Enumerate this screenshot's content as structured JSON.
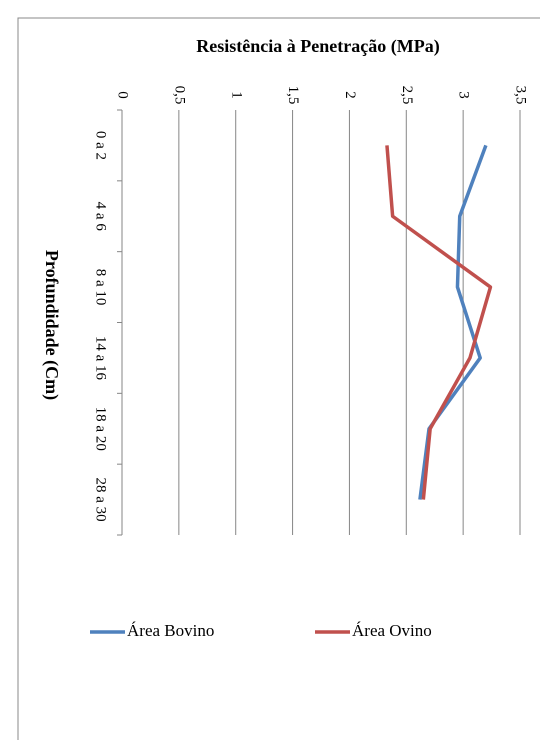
{
  "chart_data": {
    "type": "line",
    "orientation": "horizontal",
    "title": "Resistência à Penetração (MPa)",
    "y_label": "Profundidade (Cm)",
    "categories": [
      "0 a 2",
      "4 a 6",
      "8 a 10",
      "14 a 16",
      "18 a 20",
      "28 a 30"
    ],
    "series": [
      {
        "name": "Área Bovino",
        "color": "#4f81bd",
        "values": [
          3.2,
          2.97,
          2.95,
          3.15,
          2.7,
          2.62
        ]
      },
      {
        "name": "Área Ovino",
        "color": "#c0504d",
        "values": [
          2.33,
          2.38,
          3.24,
          3.06,
          2.71,
          2.65
        ]
      }
    ],
    "xlim": [
      0,
      3.5
    ],
    "xticks": [
      0,
      {
        "value": 0.5,
        "label": "0,5"
      },
      1,
      {
        "value": 1.5,
        "label": "1,5"
      },
      2,
      {
        "value": 2.5,
        "label": "2,5"
      },
      3,
      {
        "value": 3.5,
        "label": "3,5"
      }
    ],
    "grid": true,
    "legend": "bottom"
  }
}
